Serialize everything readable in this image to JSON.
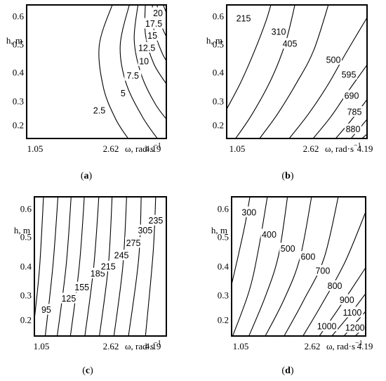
{
  "chart_data": [
    {
      "type": "contour",
      "panel_label": "(a)",
      "x_ticks": [
        "1.05",
        "2.62",
        "4.19"
      ],
      "x_axis_label": "ω, rad·s",
      "x_axis_exp": "−1",
      "y_axis_label": "h, m",
      "y_ticks": [
        "0.6",
        "0.5",
        "0.4",
        "0.3",
        "0.2"
      ],
      "xlim": [
        1.05,
        4.19
      ],
      "ylim": [
        0.15,
        0.65
      ],
      "levels": [
        2.5,
        5,
        7.5,
        10,
        12.5,
        15,
        17.5,
        20
      ],
      "level_labels": [
        "2.5",
        "5",
        "7.5",
        "10",
        "12.5",
        "15",
        "17.5",
        "20"
      ]
    },
    {
      "type": "contour",
      "panel_label": "(b)",
      "x_ticks": [
        "1.05",
        "2.62",
        "4.19"
      ],
      "x_axis_label": "ω, rad·s",
      "x_axis_exp": "−1",
      "y_axis_label": "h, m",
      "y_ticks": [
        "0.6",
        "0.5",
        "0.4",
        "0.3",
        "0.2"
      ],
      "xlim": [
        1.05,
        4.19
      ],
      "ylim": [
        0.15,
        0.65
      ],
      "levels": [
        215,
        310,
        405,
        500,
        595,
        690,
        785,
        880
      ],
      "level_labels": [
        "215",
        "310",
        "405",
        "500",
        "595",
        "690",
        "785",
        "880"
      ]
    },
    {
      "type": "contour",
      "panel_label": "(c)",
      "x_ticks": [
        "1.05",
        "2.62",
        "4.19"
      ],
      "x_axis_label": "ω, rad·s",
      "x_axis_exp": "−1",
      "y_axis_label": "h, m",
      "y_ticks": [
        "0.6",
        "0.5",
        "0.4",
        "0.3",
        "0.2"
      ],
      "xlim": [
        1.05,
        4.19
      ],
      "ylim": [
        0.15,
        0.65
      ],
      "levels": [
        95,
        125,
        155,
        185,
        215,
        245,
        275,
        305,
        235
      ],
      "level_labels": [
        "95",
        "125",
        "155",
        "185",
        "215",
        "245",
        "275",
        "305",
        "235"
      ]
    },
    {
      "type": "contour",
      "panel_label": "(d)",
      "x_ticks": [
        "1.05",
        "2.62",
        "4.19"
      ],
      "x_axis_label": "ω, rad·s",
      "x_axis_exp": "−1",
      "y_axis_label": "h, m",
      "y_ticks": [
        "0.6",
        "0.5",
        "0.4",
        "0.3",
        "0.2"
      ],
      "xlim": [
        1.05,
        4.19
      ],
      "ylim": [
        0.15,
        0.65
      ],
      "levels": [
        300,
        400,
        500,
        600,
        700,
        800,
        900,
        1000,
        1100,
        1200
      ],
      "level_labels": [
        "300",
        "400",
        "500",
        "600",
        "700",
        "800",
        "900",
        "1000",
        "1100",
        "1200"
      ]
    }
  ]
}
